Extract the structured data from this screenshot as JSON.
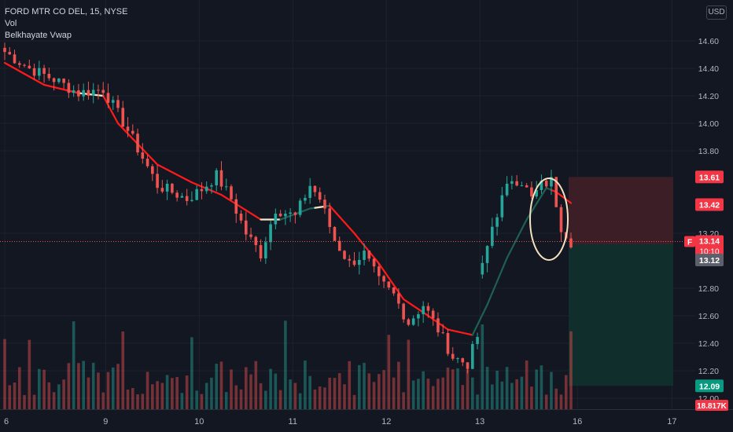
{
  "header": {
    "symbol_title": "FORD MTR CO DEL, 15, NYSE",
    "indicator_1": "Vol",
    "indicator_2": "Belkhayate Vwap",
    "currency_button": "USD"
  },
  "colors": {
    "background": "#131722",
    "up": "#26a69a",
    "down": "#ef5350",
    "vwap_down": "#ff1a1a",
    "vwap_up": "#1f5f56",
    "vwap_flat": "#f5e6c8",
    "stop_zone": "#3b1e26",
    "target_zone": "#0f2e2c",
    "circle": "#f5e1c0",
    "grid": "#1e222d",
    "axis_text": "#b2b5be"
  },
  "price_tags": {
    "stop": "13.61",
    "vwap": "13.42",
    "last_symbol": "F",
    "last": "13.14",
    "countdown": "10:10",
    "entry": "13.12",
    "target": "12.09",
    "volume": "18.817K"
  },
  "chart_data": {
    "type": "candlestick",
    "series": [
      {
        "name": "F",
        "type": "candlestick"
      },
      {
        "name": "Vol",
        "type": "bar"
      },
      {
        "name": "Belkhayate Vwap",
        "type": "line"
      }
    ],
    "x_tick_labels": [
      "6",
      "9",
      "10",
      "11",
      "12",
      "13",
      "16",
      "17"
    ],
    "y_tick_labels": [
      "14.60",
      "14.40",
      "14.20",
      "14.00",
      "13.80",
      "13.20",
      "12.80",
      "12.60",
      "12.40",
      "12.20",
      "12.00"
    ],
    "ylim": [
      11.97,
      14.79
    ],
    "grid": true,
    "ohlc_anchor_closes": [
      [
        0,
        14.52
      ],
      [
        5,
        14.4
      ],
      [
        10,
        14.32
      ],
      [
        15,
        14.22
      ],
      [
        20,
        14.25
      ],
      [
        25,
        13.95
      ],
      [
        31,
        13.55
      ],
      [
        37,
        13.45
      ],
      [
        40,
        13.52
      ],
      [
        43,
        13.62
      ],
      [
        46,
        13.45
      ],
      [
        49,
        13.2
      ],
      [
        52,
        13.05
      ],
      [
        55,
        13.38
      ],
      [
        59,
        13.32
      ],
      [
        62,
        13.55
      ],
      [
        64,
        13.45
      ],
      [
        67,
        13.15
      ],
      [
        70,
        12.98
      ],
      [
        73,
        13.05
      ],
      [
        76,
        12.85
      ],
      [
        79,
        12.75
      ],
      [
        82,
        12.55
      ],
      [
        85,
        12.68
      ],
      [
        88,
        12.5
      ],
      [
        91,
        12.3
      ],
      [
        94,
        12.25
      ],
      [
        96,
        12.45
      ],
      [
        97,
        12.95
      ],
      [
        99,
        13.25
      ],
      [
        101,
        13.45
      ],
      [
        103,
        13.6
      ],
      [
        105,
        13.58
      ],
      [
        107,
        13.45
      ],
      [
        109,
        13.55
      ],
      [
        111,
        13.58
      ],
      [
        112,
        13.42
      ],
      [
        113,
        13.25
      ],
      [
        114,
        13.2
      ],
      [
        115,
        13.14
      ]
    ],
    "vwap_anchor_values": [
      [
        0,
        14.44
      ],
      [
        8,
        14.28
      ],
      [
        15,
        14.22
      ],
      [
        20,
        14.2
      ],
      [
        23,
        14.0
      ],
      [
        31,
        13.7
      ],
      [
        38,
        13.57
      ],
      [
        44,
        13.48
      ],
      [
        52,
        13.3
      ],
      [
        56,
        13.3
      ],
      [
        62,
        13.38
      ],
      [
        66,
        13.4
      ],
      [
        71,
        13.2
      ],
      [
        76,
        12.98
      ],
      [
        81,
        12.72
      ],
      [
        86,
        12.6
      ],
      [
        90,
        12.5
      ],
      [
        95,
        12.46
      ],
      [
        98,
        12.68
      ],
      [
        102,
        13.02
      ],
      [
        106,
        13.3
      ],
      [
        110,
        13.53
      ],
      [
        112,
        13.5
      ],
      [
        115,
        13.42
      ]
    ],
    "trade_setup": {
      "type": "short position",
      "entry": 13.12,
      "stop": 13.61,
      "target": 12.09
    }
  }
}
